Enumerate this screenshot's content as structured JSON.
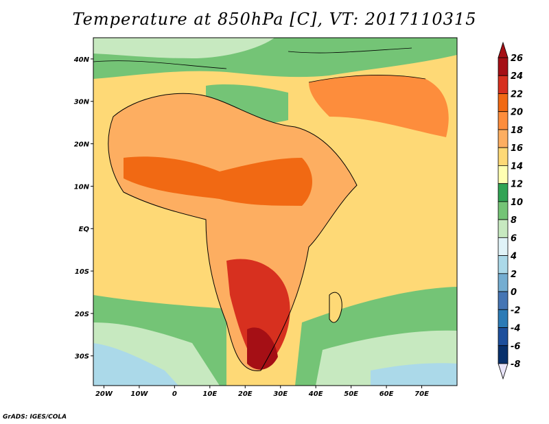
{
  "title": "Temperature at 850hPa [C], VT: 2017110315",
  "credit": "GrADS: IGES/COLA",
  "map": {
    "lon_range": [
      -23,
      80
    ],
    "lat_range": [
      -37,
      45
    ],
    "lon_ticks": [
      {
        "value": -20,
        "label": "20W"
      },
      {
        "value": -10,
        "label": "10W"
      },
      {
        "value": 0,
        "label": "0"
      },
      {
        "value": 10,
        "label": "10E"
      },
      {
        "value": 20,
        "label": "20E"
      },
      {
        "value": 30,
        "label": "30E"
      },
      {
        "value": 40,
        "label": "40E"
      },
      {
        "value": 50,
        "label": "50E"
      },
      {
        "value": 60,
        "label": "60E"
      },
      {
        "value": 70,
        "label": "70E"
      }
    ],
    "lat_ticks": [
      {
        "value": 40,
        "label": "40N"
      },
      {
        "value": 30,
        "label": "30N"
      },
      {
        "value": 20,
        "label": "20N"
      },
      {
        "value": 10,
        "label": "10N"
      },
      {
        "value": 0,
        "label": "EQ"
      },
      {
        "value": -10,
        "label": "10S"
      },
      {
        "value": -20,
        "label": "20S"
      },
      {
        "value": -30,
        "label": "30S"
      }
    ]
  },
  "colorbar": {
    "levels": [
      26,
      24,
      22,
      20,
      18,
      16,
      14,
      12,
      10,
      8,
      6,
      4,
      2,
      0,
      -2,
      -4,
      -6,
      -8
    ],
    "labels": [
      "26",
      "24",
      "22",
      "20",
      "18",
      "16",
      "14",
      "12",
      "10",
      "8",
      "6",
      "4",
      "2",
      "0",
      "-2",
      "-4",
      "-6",
      "-8"
    ],
    "colors": [
      "#a50f15",
      "#d7301f",
      "#f16913",
      "#fd8d3c",
      "#fdae61",
      "#fed976",
      "#ffffb2",
      "#31a354",
      "#74c476",
      "#c7e9c0",
      "#e0f3f8",
      "#abd9e9",
      "#74add1",
      "#4575b4",
      "#2c7bb6",
      "#1d4f9c",
      "#08306b"
    ]
  }
}
